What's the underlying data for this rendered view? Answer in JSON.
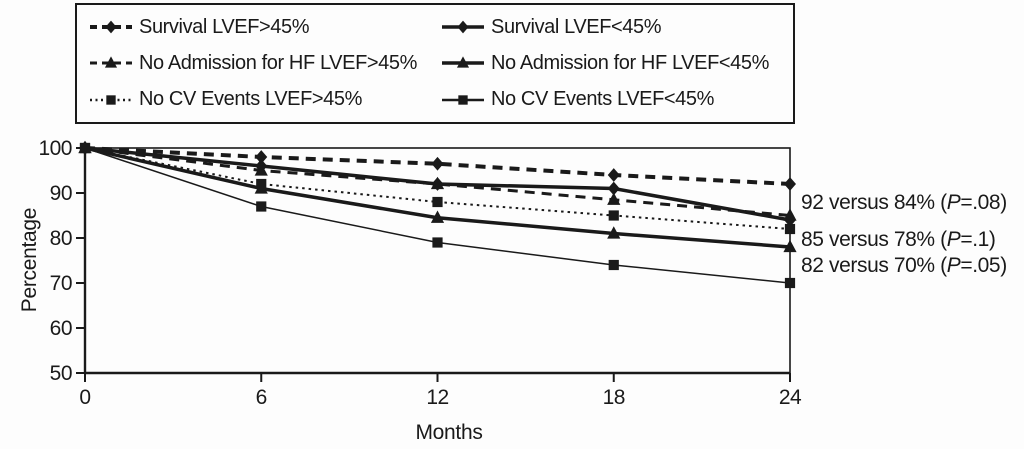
{
  "figure": {
    "background": "#fdfdfd",
    "ink": "#1a1a1a"
  },
  "chart_data": {
    "type": "line",
    "x": [
      0,
      6,
      12,
      18,
      24
    ],
    "xlim": [
      0,
      24
    ],
    "ylim": [
      50,
      100
    ],
    "yticks": [
      50,
      60,
      70,
      80,
      90,
      100
    ],
    "xlabel": "Months",
    "ylabel": "Percentage",
    "grid": false,
    "legend_position": "top",
    "series": [
      {
        "name": "Survival LVEF>45%",
        "marker": "diamond",
        "line": "dashed",
        "width": 4,
        "values": [
          100,
          98,
          96.5,
          94,
          92
        ]
      },
      {
        "name": "Survival LVEF<45%",
        "marker": "diamond",
        "line": "solid",
        "width": 3.5,
        "values": [
          100,
          96,
          92,
          91,
          84
        ]
      },
      {
        "name": "No Admission for HF LVEF>45%",
        "marker": "triangle",
        "line": "dashed",
        "width": 3,
        "values": [
          100,
          95,
          92,
          88.5,
          85
        ]
      },
      {
        "name": "No Admission for HF LVEF<45%",
        "marker": "triangle",
        "line": "solid",
        "width": 3.5,
        "values": [
          100,
          91,
          84.5,
          81,
          78
        ]
      },
      {
        "name": "No CV Events LVEF>45%",
        "marker": "square",
        "line": "dotted",
        "width": 2,
        "values": [
          100,
          92,
          88,
          85,
          82
        ]
      },
      {
        "name": "No CV Events LVEF<45%",
        "marker": "square",
        "line": "solid",
        "width": 1.5,
        "values": [
          100,
          87,
          79,
          74,
          70
        ]
      }
    ],
    "annotations": [
      {
        "pre": "92 versus 84% (",
        "p": "P",
        "post": "=.08)"
      },
      {
        "pre": "85 versus 78% (",
        "p": "P",
        "post": "=.1)"
      },
      {
        "pre": "82 versus 70% (",
        "p": "P",
        "post": "=.05)"
      }
    ]
  }
}
